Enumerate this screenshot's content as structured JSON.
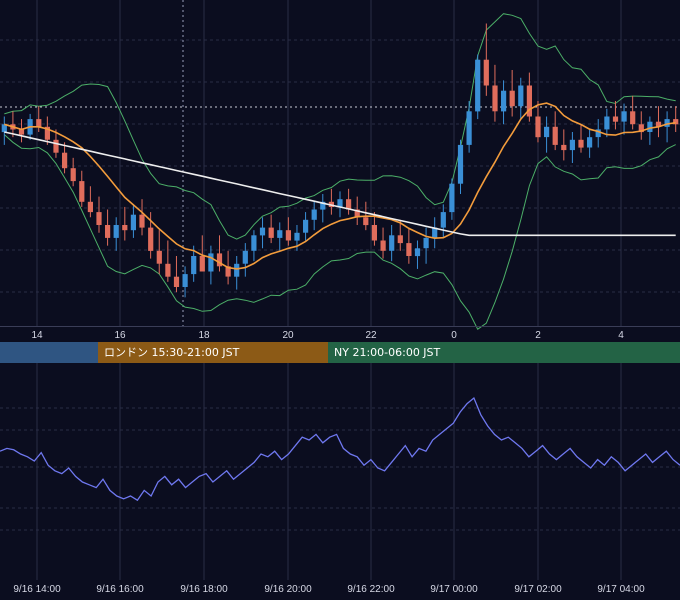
{
  "chart_data": [
    {
      "type": "candlestick",
      "x_tick_labels": [
        "14",
        "16",
        "18",
        "20",
        "22",
        "0",
        "2",
        "4"
      ],
      "ylim": [
        0,
        100
      ],
      "candles": [
        {
          "o": 52,
          "h": 58,
          "l": 47,
          "c": 55
        },
        {
          "o": 55,
          "h": 60,
          "l": 50,
          "c": 53
        },
        {
          "o": 53,
          "h": 57,
          "l": 48,
          "c": 51
        },
        {
          "o": 51,
          "h": 59,
          "l": 49,
          "c": 57
        },
        {
          "o": 57,
          "h": 62,
          "l": 52,
          "c": 54
        },
        {
          "o": 54,
          "h": 58,
          "l": 47,
          "c": 49
        },
        {
          "o": 49,
          "h": 53,
          "l": 42,
          "c": 44
        },
        {
          "o": 44,
          "h": 48,
          "l": 36,
          "c": 38
        },
        {
          "o": 38,
          "h": 42,
          "l": 31,
          "c": 33
        },
        {
          "o": 33,
          "h": 37,
          "l": 23,
          "c": 25
        },
        {
          "o": 25,
          "h": 31,
          "l": 19,
          "c": 21
        },
        {
          "o": 21,
          "h": 27,
          "l": 13,
          "c": 16
        },
        {
          "o": 16,
          "h": 22,
          "l": 8,
          "c": 11
        },
        {
          "o": 11,
          "h": 19,
          "l": 6,
          "c": 16
        },
        {
          "o": 16,
          "h": 23,
          "l": 10,
          "c": 14
        },
        {
          "o": 14,
          "h": 24,
          "l": 11,
          "c": 20
        },
        {
          "o": 20,
          "h": 26,
          "l": 12,
          "c": 15
        },
        {
          "o": 15,
          "h": 21,
          "l": 3,
          "c": 6
        },
        {
          "o": 6,
          "h": 14,
          "l": -3,
          "c": 1
        },
        {
          "o": 1,
          "h": 10,
          "l": -6,
          "c": -4
        },
        {
          "o": -4,
          "h": 4,
          "l": -10,
          "c": -8
        },
        {
          "o": -8,
          "h": 0,
          "l": -12,
          "c": -3
        },
        {
          "o": -3,
          "h": 8,
          "l": -6,
          "c": 4
        },
        {
          "o": 4,
          "h": 12,
          "l": -1,
          "c": -2
        },
        {
          "o": -2,
          "h": 8,
          "l": -7,
          "c": 5
        },
        {
          "o": 5,
          "h": 12,
          "l": -2,
          "c": 0
        },
        {
          "o": 0,
          "h": 6,
          "l": -7,
          "c": -4
        },
        {
          "o": -4,
          "h": 4,
          "l": -9,
          "c": 1
        },
        {
          "o": 1,
          "h": 9,
          "l": -4,
          "c": 6
        },
        {
          "o": 6,
          "h": 14,
          "l": 2,
          "c": 12
        },
        {
          "o": 12,
          "h": 19,
          "l": 7,
          "c": 15
        },
        {
          "o": 15,
          "h": 20,
          "l": 9,
          "c": 11
        },
        {
          "o": 11,
          "h": 17,
          "l": 6,
          "c": 14
        },
        {
          "o": 14,
          "h": 19,
          "l": 8,
          "c": 10
        },
        {
          "o": 10,
          "h": 16,
          "l": 6,
          "c": 13
        },
        {
          "o": 13,
          "h": 21,
          "l": 10,
          "c": 18
        },
        {
          "o": 18,
          "h": 25,
          "l": 14,
          "c": 22
        },
        {
          "o": 22,
          "h": 28,
          "l": 17,
          "c": 25
        },
        {
          "o": 25,
          "h": 30,
          "l": 20,
          "c": 23
        },
        {
          "o": 23,
          "h": 29,
          "l": 19,
          "c": 26
        },
        {
          "o": 26,
          "h": 30,
          "l": 20,
          "c": 22
        },
        {
          "o": 22,
          "h": 27,
          "l": 16,
          "c": 19
        },
        {
          "o": 19,
          "h": 25,
          "l": 14,
          "c": 16
        },
        {
          "o": 16,
          "h": 21,
          "l": 8,
          "c": 10
        },
        {
          "o": 10,
          "h": 15,
          "l": 3,
          "c": 6
        },
        {
          "o": 6,
          "h": 16,
          "l": 2,
          "c": 12
        },
        {
          "o": 12,
          "h": 18,
          "l": 6,
          "c": 9
        },
        {
          "o": 9,
          "h": 15,
          "l": 1,
          "c": 4
        },
        {
          "o": 4,
          "h": 10,
          "l": -1,
          "c": 7
        },
        {
          "o": 7,
          "h": 15,
          "l": 1,
          "c": 11
        },
        {
          "o": 11,
          "h": 19,
          "l": 7,
          "c": 15
        },
        {
          "o": 15,
          "h": 24,
          "l": 11,
          "c": 21
        },
        {
          "o": 21,
          "h": 34,
          "l": 18,
          "c": 32
        },
        {
          "o": 32,
          "h": 49,
          "l": 28,
          "c": 47
        },
        {
          "o": 47,
          "h": 64,
          "l": 44,
          "c": 60
        },
        {
          "o": 60,
          "h": 82,
          "l": 57,
          "c": 80
        },
        {
          "o": 80,
          "h": 94,
          "l": 66,
          "c": 70
        },
        {
          "o": 70,
          "h": 78,
          "l": 56,
          "c": 60
        },
        {
          "o": 60,
          "h": 72,
          "l": 55,
          "c": 68
        },
        {
          "o": 68,
          "h": 76,
          "l": 58,
          "c": 62
        },
        {
          "o": 62,
          "h": 73,
          "l": 57,
          "c": 70
        },
        {
          "o": 70,
          "h": 75,
          "l": 56,
          "c": 58
        },
        {
          "o": 58,
          "h": 64,
          "l": 48,
          "c": 50
        },
        {
          "o": 50,
          "h": 58,
          "l": 44,
          "c": 54
        },
        {
          "o": 54,
          "h": 60,
          "l": 45,
          "c": 47
        },
        {
          "o": 47,
          "h": 53,
          "l": 41,
          "c": 45
        },
        {
          "o": 45,
          "h": 52,
          "l": 40,
          "c": 49
        },
        {
          "o": 49,
          "h": 55,
          "l": 44,
          "c": 46
        },
        {
          "o": 46,
          "h": 53,
          "l": 42,
          "c": 50
        },
        {
          "o": 50,
          "h": 57,
          "l": 46,
          "c": 53
        },
        {
          "o": 53,
          "h": 61,
          "l": 50,
          "c": 58
        },
        {
          "o": 58,
          "h": 64,
          "l": 53,
          "c": 56
        },
        {
          "o": 56,
          "h": 63,
          "l": 51,
          "c": 60
        },
        {
          "o": 60,
          "h": 66,
          "l": 53,
          "c": 55
        },
        {
          "o": 55,
          "h": 60,
          "l": 49,
          "c": 52
        },
        {
          "o": 52,
          "h": 58,
          "l": 47,
          "c": 56
        },
        {
          "o": 56,
          "h": 62,
          "l": 50,
          "c": 54
        },
        {
          "o": 54,
          "h": 60,
          "l": 48,
          "c": 57
        },
        {
          "o": 57,
          "h": 62,
          "l": 52,
          "c": 55
        }
      ]
    },
    {
      "type": "line",
      "ylim": [
        0,
        100
      ],
      "values": [
        62,
        64,
        63,
        60,
        58,
        55,
        61,
        52,
        48,
        46,
        50,
        44,
        40,
        38,
        36,
        42,
        34,
        30,
        28,
        30,
        27,
        34,
        30,
        40,
        44,
        38,
        42,
        36,
        40,
        44,
        46,
        40,
        44,
        48,
        42,
        46,
        50,
        54,
        60,
        58,
        62,
        56,
        60,
        66,
        72,
        70,
        74,
        68,
        72,
        74,
        64,
        60,
        58,
        52,
        56,
        50,
        48,
        54,
        60,
        66,
        58,
        64,
        62,
        70,
        74,
        78,
        82,
        90,
        96,
        100,
        88,
        80,
        74,
        70,
        72,
        68,
        64,
        58,
        62,
        66,
        60,
        56,
        60,
        64,
        58,
        54,
        50,
        56,
        52,
        58,
        54,
        48,
        52,
        56,
        60,
        54,
        58,
        62,
        56,
        52
      ]
    }
  ],
  "sessions": [
    {
      "label": "",
      "color": "#2f5582"
    },
    {
      "label": "ロンドン 15:30-21:00 JST",
      "color": "#8c5a16"
    },
    {
      "label": "NY 21:00-06:00 JST",
      "color": "#236345"
    }
  ],
  "time_axis_labels": [
    "9/16 14:00",
    "9/16 16:00",
    "9/16 18:00",
    "9/16 20:00",
    "9/16 22:00",
    "9/17 00:00",
    "9/17 02:00",
    "9/17 04:00"
  ],
  "colors": {
    "background": "#0b0d1f",
    "bull": "#3a8fd6",
    "bear": "#e06d5c",
    "ma_short": "#f39c3c",
    "ma_long": "#eeeeee",
    "bands": "#4caf68",
    "oscillator": "#6f78f0",
    "grid": "#2a2d46"
  }
}
